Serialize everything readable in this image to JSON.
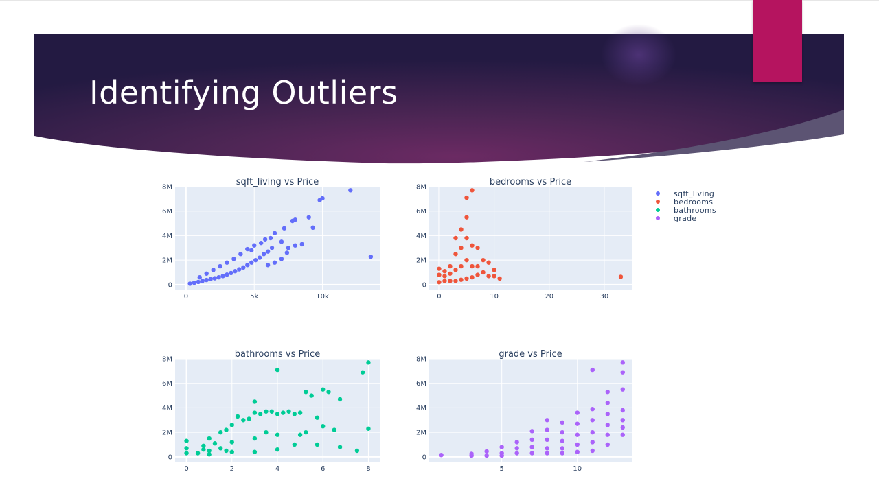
{
  "slide": {
    "title": "Identifying Outliers",
    "colors": {
      "banner_dark": "#231a42",
      "banner_mid": "#6b2a63",
      "accent": "#b5145f"
    }
  },
  "legend": {
    "items": [
      {
        "name": "sqft_living",
        "color": "#636efa"
      },
      {
        "name": "bedrooms",
        "color": "#ef553b"
      },
      {
        "name": "bathrooms",
        "color": "#00cc96"
      },
      {
        "name": "grade",
        "color": "#ab63fa"
      }
    ]
  },
  "chart_data": [
    {
      "type": "scatter",
      "title": "sqft_living vs Price",
      "color": "#636efa",
      "xlim": [
        -800,
        14200
      ],
      "ylim": [
        -400000,
        8000000
      ],
      "xticks": [
        0,
        5000,
        10000
      ],
      "xtick_labels": [
        "0",
        "5k",
        "10k"
      ],
      "yticks": [
        0,
        2000000,
        4000000,
        6000000,
        8000000
      ],
      "ytick_labels": [
        "0",
        "2M",
        "4M",
        "6M",
        "8M"
      ],
      "points": [
        [
          290,
          80000
        ],
        [
          600,
          150000
        ],
        [
          900,
          220000
        ],
        [
          1200,
          300000
        ],
        [
          1500,
          380000
        ],
        [
          1800,
          450000
        ],
        [
          2100,
          520000
        ],
        [
          2400,
          600000
        ],
        [
          2700,
          700000
        ],
        [
          3000,
          820000
        ],
        [
          3300,
          950000
        ],
        [
          3600,
          1100000
        ],
        [
          3900,
          1250000
        ],
        [
          4200,
          1400000
        ],
        [
          4500,
          1600000
        ],
        [
          4800,
          1800000
        ],
        [
          5100,
          2000000
        ],
        [
          5400,
          2200000
        ],
        [
          5700,
          2500000
        ],
        [
          6000,
          2700000
        ],
        [
          6300,
          3000000
        ],
        [
          5000,
          3200000
        ],
        [
          5500,
          3400000
        ],
        [
          4500,
          2900000
        ],
        [
          4000,
          2500000
        ],
        [
          3500,
          2100000
        ],
        [
          3000,
          1800000
        ],
        [
          2500,
          1500000
        ],
        [
          2000,
          1200000
        ],
        [
          1500,
          900000
        ],
        [
          1000,
          600000
        ],
        [
          7000,
          3500000
        ],
        [
          7500,
          3000000
        ],
        [
          8000,
          3200000
        ],
        [
          6500,
          4200000
        ],
        [
          7200,
          4600000
        ],
        [
          7800,
          5200000
        ],
        [
          8000,
          5300000
        ],
        [
          9000,
          5500000
        ],
        [
          9300,
          4650000
        ],
        [
          9800,
          6900000
        ],
        [
          10000,
          7050000
        ],
        [
          12050,
          7700000
        ],
        [
          13540,
          2280000
        ],
        [
          6000,
          1600000
        ],
        [
          6500,
          1800000
        ],
        [
          7000,
          2100000
        ],
        [
          8500,
          3300000
        ],
        [
          5800,
          3700000
        ],
        [
          6200,
          3800000
        ],
        [
          4800,
          2800000
        ],
        [
          7400,
          2600000
        ]
      ]
    },
    {
      "type": "scatter",
      "title": "bedrooms vs Price",
      "color": "#ef553b",
      "xlim": [
        -1.8,
        35
      ],
      "ylim": [
        -400000,
        8000000
      ],
      "xticks": [
        0,
        10,
        20,
        30
      ],
      "xtick_labels": [
        "0",
        "10",
        "20",
        "30"
      ],
      "yticks": [
        0,
        2000000,
        4000000,
        6000000,
        8000000
      ],
      "ytick_labels": [
        "0",
        "2M",
        "4M",
        "6M",
        "8M"
      ],
      "points": [
        [
          0,
          1300000
        ],
        [
          0,
          200000
        ],
        [
          0,
          800000
        ],
        [
          1,
          1100000
        ],
        [
          1,
          300000
        ],
        [
          1,
          700000
        ],
        [
          2,
          1500000
        ],
        [
          2,
          300000
        ],
        [
          2,
          900000
        ],
        [
          3,
          3800000
        ],
        [
          3,
          2500000
        ],
        [
          3,
          1200000
        ],
        [
          3,
          300000
        ],
        [
          4,
          4500000
        ],
        [
          4,
          3000000
        ],
        [
          4,
          1500000
        ],
        [
          4,
          400000
        ],
        [
          5,
          5500000
        ],
        [
          5,
          7100000
        ],
        [
          5,
          3800000
        ],
        [
          5,
          2000000
        ],
        [
          5,
          500000
        ],
        [
          6,
          7700000
        ],
        [
          6,
          3200000
        ],
        [
          6,
          1500000
        ],
        [
          6,
          600000
        ],
        [
          7,
          3000000
        ],
        [
          7,
          1500000
        ],
        [
          7,
          800000
        ],
        [
          8,
          2000000
        ],
        [
          8,
          1000000
        ],
        [
          9,
          1800000
        ],
        [
          9,
          700000
        ],
        [
          10,
          1200000
        ],
        [
          10,
          700000
        ],
        [
          11,
          500000
        ],
        [
          33,
          640000
        ]
      ]
    },
    {
      "type": "scatter",
      "title": "bathrooms vs Price",
      "color": "#00cc96",
      "xlim": [
        -0.5,
        8.5
      ],
      "ylim": [
        -400000,
        8000000
      ],
      "xticks": [
        0,
        2,
        4,
        6,
        8
      ],
      "xtick_labels": [
        "0",
        "2",
        "4",
        "6",
        "8"
      ],
      "yticks": [
        0,
        2000000,
        4000000,
        6000000,
        8000000
      ],
      "ytick_labels": [
        "0",
        "2M",
        "4M",
        "6M",
        "8M"
      ],
      "points": [
        [
          0,
          1300000
        ],
        [
          0,
          700000
        ],
        [
          0,
          300000
        ],
        [
          0.5,
          300000
        ],
        [
          0.75,
          600000
        ],
        [
          0.75,
          900000
        ],
        [
          1,
          1500000
        ],
        [
          1,
          500000
        ],
        [
          1,
          200000
        ],
        [
          1.25,
          1100000
        ],
        [
          1.5,
          2000000
        ],
        [
          1.5,
          700000
        ],
        [
          1.75,
          2200000
        ],
        [
          1.75,
          500000
        ],
        [
          2,
          2600000
        ],
        [
          2,
          1200000
        ],
        [
          2,
          400000
        ],
        [
          2.25,
          3300000
        ],
        [
          2.5,
          3000000
        ],
        [
          2.75,
          3100000
        ],
        [
          3,
          3600000
        ],
        [
          3,
          4500000
        ],
        [
          3,
          1500000
        ],
        [
          3,
          400000
        ],
        [
          3.25,
          3500000
        ],
        [
          3.5,
          3700000
        ],
        [
          3.5,
          2000000
        ],
        [
          3.75,
          3700000
        ],
        [
          4,
          3500000
        ],
        [
          4,
          7100000
        ],
        [
          4,
          1800000
        ],
        [
          4,
          600000
        ],
        [
          4.25,
          3600000
        ],
        [
          4.5,
          3700000
        ],
        [
          4.75,
          3500000
        ],
        [
          4.75,
          1000000
        ],
        [
          5,
          3600000
        ],
        [
          5,
          1800000
        ],
        [
          5.25,
          5300000
        ],
        [
          5.25,
          2000000
        ],
        [
          5.5,
          5000000
        ],
        [
          5.75,
          3200000
        ],
        [
          5.75,
          1000000
        ],
        [
          6,
          5500000
        ],
        [
          6,
          2500000
        ],
        [
          6.25,
          5300000
        ],
        [
          6.5,
          2200000
        ],
        [
          6.75,
          4700000
        ],
        [
          6.75,
          800000
        ],
        [
          7.5,
          500000
        ],
        [
          7.75,
          6900000
        ],
        [
          8,
          7700000
        ],
        [
          8,
          2300000
        ]
      ]
    },
    {
      "type": "scatter",
      "title": "grade vs Price",
      "color": "#ab63fa",
      "xlim": [
        0.2,
        13.6
      ],
      "ylim": [
        -400000,
        8000000
      ],
      "xticks": [
        5,
        10
      ],
      "xtick_labels": [
        "5",
        "10"
      ],
      "yticks": [
        0,
        2000000,
        4000000,
        6000000,
        8000000
      ],
      "ytick_labels": [
        "0",
        "2M",
        "4M",
        "6M",
        "8M"
      ],
      "points": [
        [
          1,
          150000
        ],
        [
          3,
          250000
        ],
        [
          3,
          100000
        ],
        [
          4,
          450000
        ],
        [
          4,
          100000
        ],
        [
          5,
          800000
        ],
        [
          5,
          300000
        ],
        [
          5,
          100000
        ],
        [
          6,
          1200000
        ],
        [
          6,
          700000
        ],
        [
          6,
          300000
        ],
        [
          7,
          2100000
        ],
        [
          7,
          1400000
        ],
        [
          7,
          800000
        ],
        [
          7,
          300000
        ],
        [
          8,
          3000000
        ],
        [
          8,
          2200000
        ],
        [
          8,
          1400000
        ],
        [
          8,
          700000
        ],
        [
          8,
          300000
        ],
        [
          9,
          2800000
        ],
        [
          9,
          2000000
        ],
        [
          9,
          1300000
        ],
        [
          9,
          700000
        ],
        [
          9,
          300000
        ],
        [
          10,
          3600000
        ],
        [
          10,
          2700000
        ],
        [
          10,
          1800000
        ],
        [
          10,
          1000000
        ],
        [
          10,
          400000
        ],
        [
          11,
          7100000
        ],
        [
          11,
          3900000
        ],
        [
          11,
          3000000
        ],
        [
          11,
          2000000
        ],
        [
          11,
          1200000
        ],
        [
          11,
          500000
        ],
        [
          12,
          5300000
        ],
        [
          12,
          4400000
        ],
        [
          12,
          3500000
        ],
        [
          12,
          2600000
        ],
        [
          12,
          1800000
        ],
        [
          12,
          1000000
        ],
        [
          13,
          7700000
        ],
        [
          13,
          6900000
        ],
        [
          13,
          5500000
        ],
        [
          13,
          3800000
        ],
        [
          13,
          3000000
        ],
        [
          13,
          2400000
        ],
        [
          13,
          1800000
        ]
      ]
    }
  ]
}
